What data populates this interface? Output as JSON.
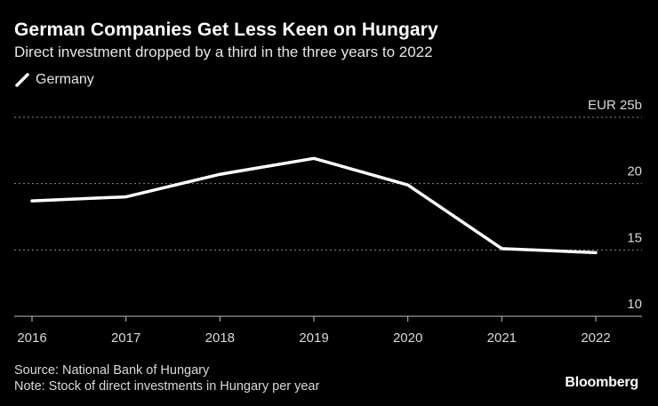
{
  "chart_data": {
    "type": "line",
    "title": "German Companies Get Less Keen on Hungary",
    "subtitle": "Direct investment dropped by a third in the three years to 2022",
    "categories": [
      "2016",
      "2017",
      "2018",
      "2019",
      "2020",
      "2021",
      "2022"
    ],
    "series": [
      {
        "name": "Germany",
        "values": [
          18.7,
          19.0,
          20.7,
          21.9,
          19.9,
          15.1,
          14.8
        ]
      }
    ],
    "ylim": [
      10,
      25
    ],
    "yticks": [
      10,
      15,
      20,
      25
    ],
    "ytick_labels": [
      "10",
      "15",
      "20",
      "EUR 25b"
    ],
    "ylabel": "",
    "xlabel": "",
    "grid": true,
    "legend_position": "top-left",
    "line_color": "#ffffff"
  },
  "footer": {
    "source": "Source: National Bank of Hungary",
    "note": "Note: Stock of direct investments in Hungary per year"
  },
  "brand": "Bloomberg"
}
